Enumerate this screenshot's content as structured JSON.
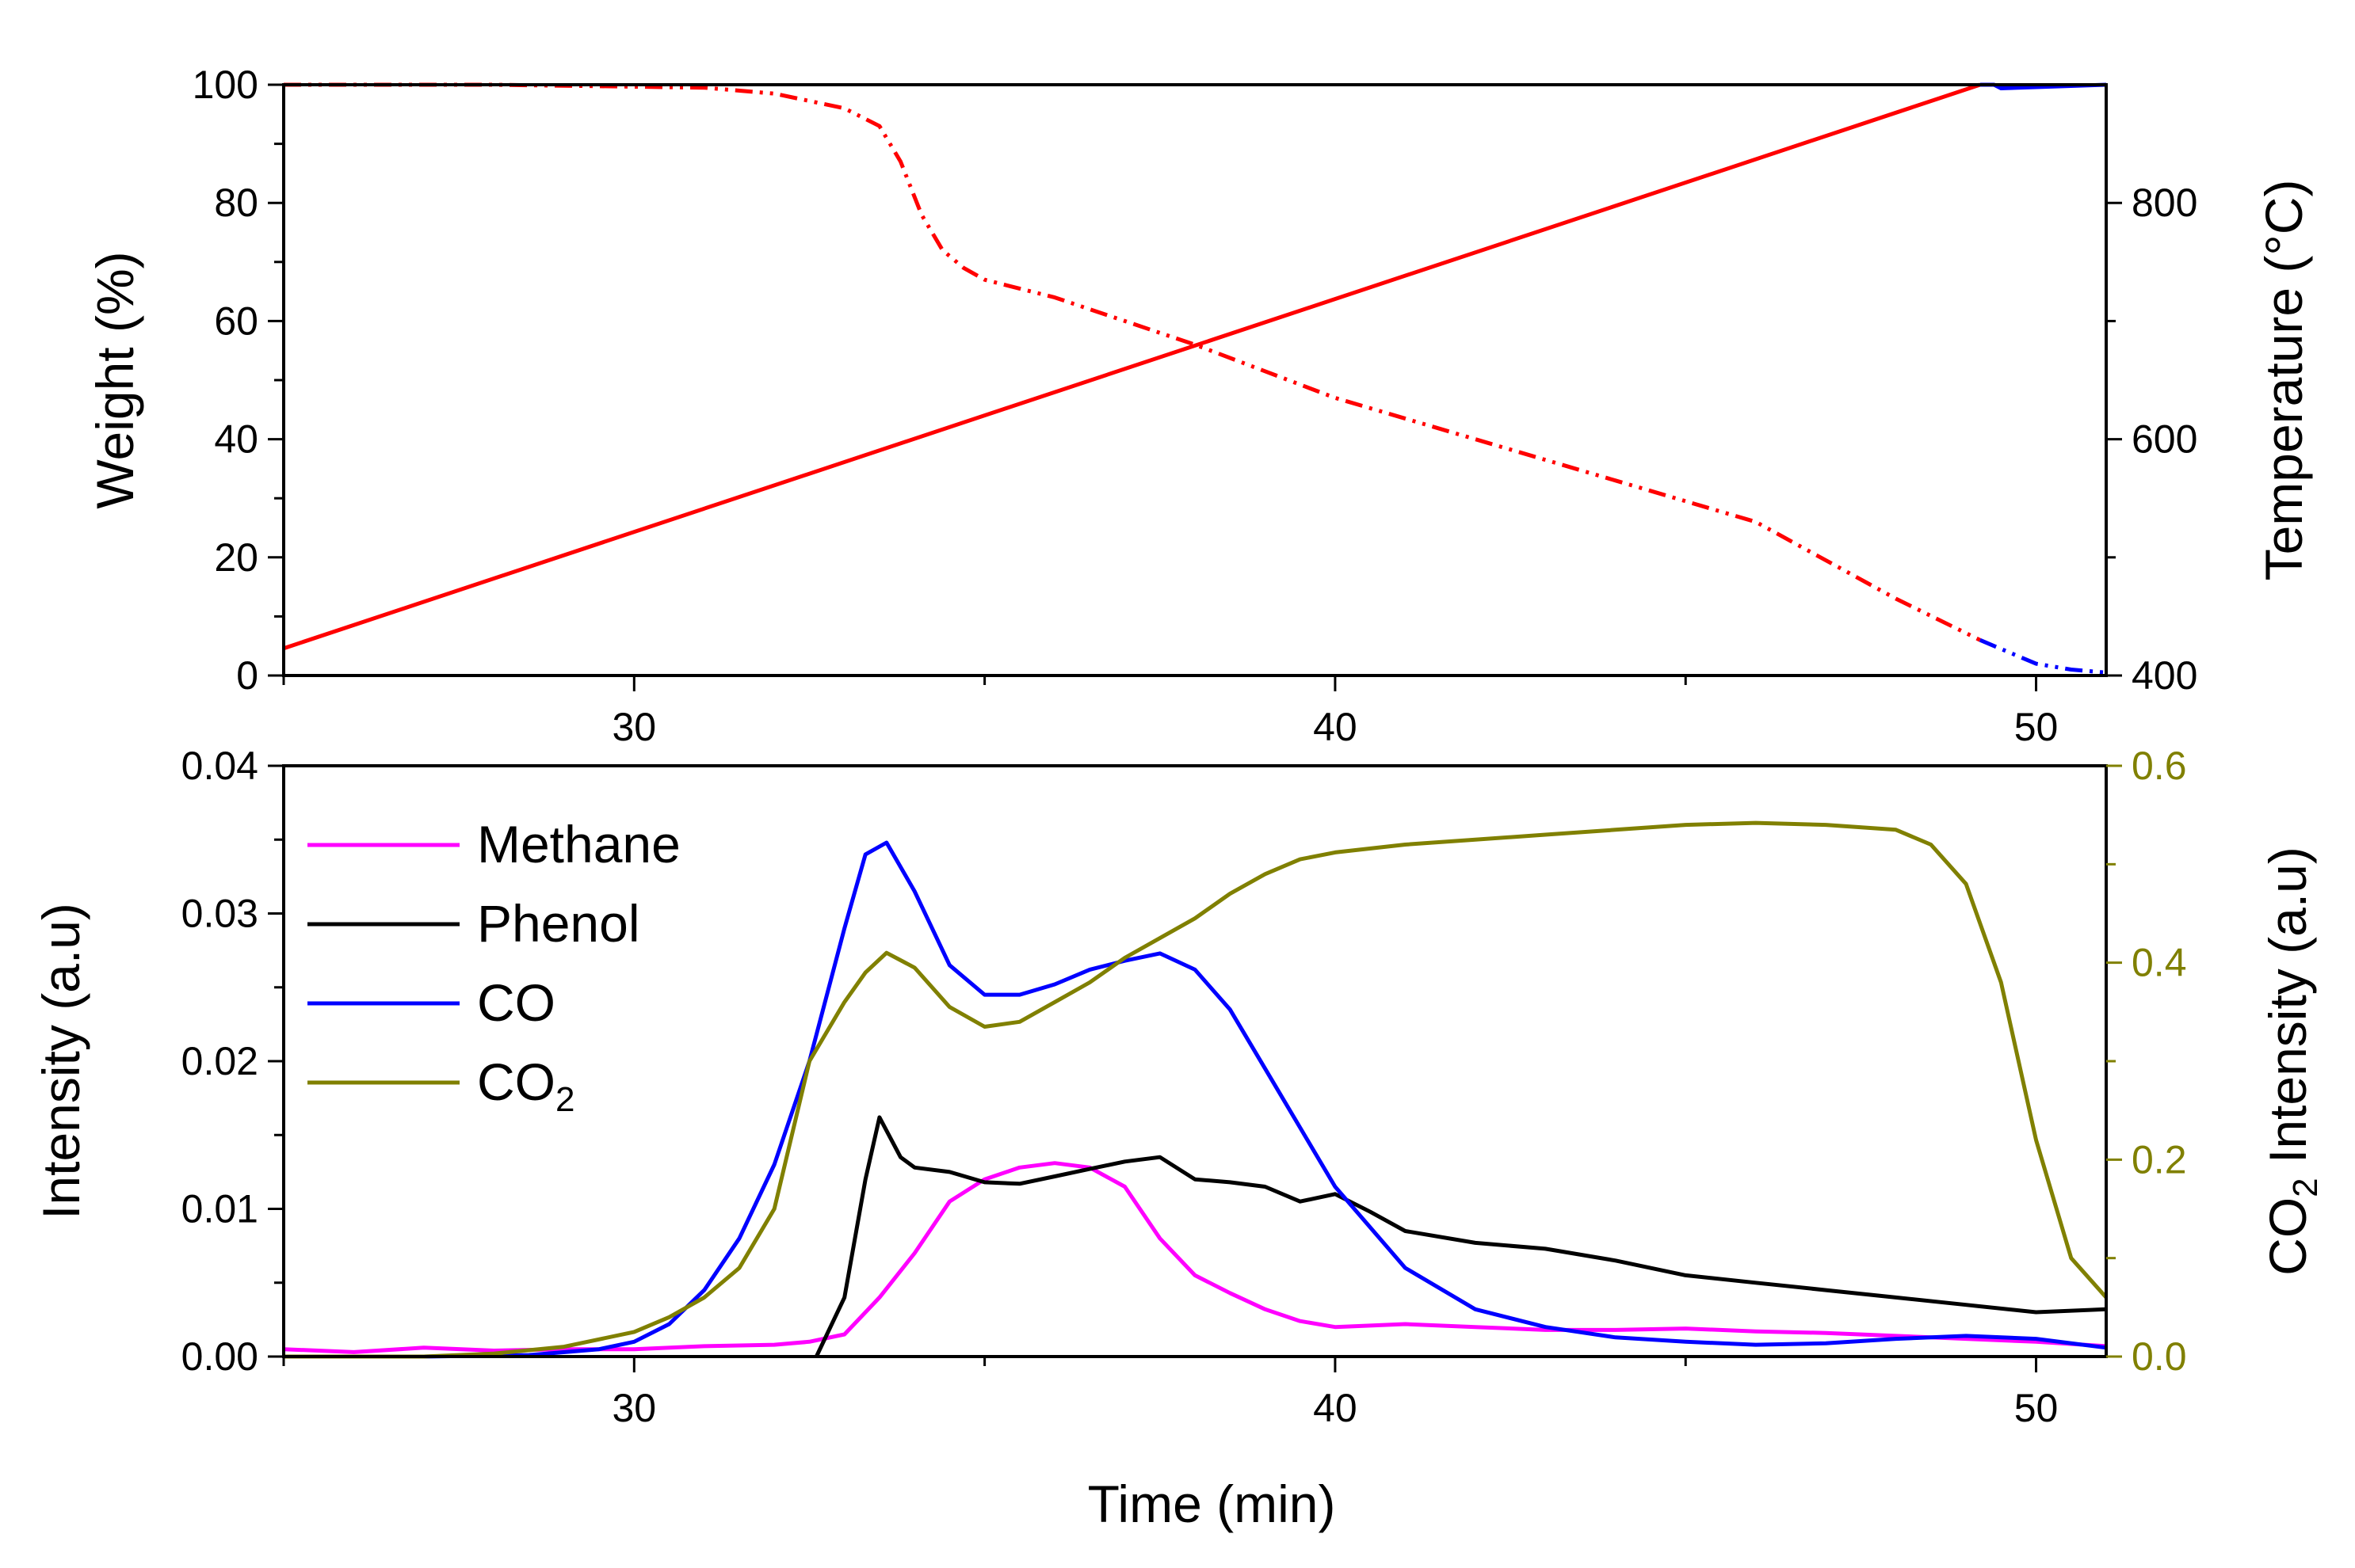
{
  "colors": {
    "weight": "#ff0000",
    "temperature_ramp": "#ff0000",
    "temperature_hold": "#0000ff",
    "methane": "#ff00ff",
    "phenol": "#000000",
    "co": "#0000ff",
    "co2": "#808000",
    "axis": "#000000"
  },
  "chart_data": [
    {
      "id": "top",
      "type": "line",
      "x_label": "",
      "xlim": [
        25,
        51
      ],
      "x_ticks": [
        30,
        40,
        50
      ],
      "y_left": {
        "label": "Weight (%)",
        "lim": [
          0,
          100
        ],
        "ticks": [
          0,
          20,
          40,
          60,
          80,
          100
        ]
      },
      "y_right": {
        "label": "Temperature (°C)",
        "lim": [
          400,
          900
        ],
        "ticks": [
          400,
          600,
          800
        ]
      },
      "series": [
        {
          "name": "Temperature",
          "axis": "right",
          "style": "solid",
          "x": [
            25,
            49.2,
            49.4,
            49.5,
            50,
            51
          ],
          "y": [
            423,
            900,
            900,
            897,
            898,
            900
          ],
          "segments": [
            {
              "from": 0,
              "to": 1,
              "color_key": "temperature_ramp"
            },
            {
              "from": 1,
              "to": 5,
              "color_key": "temperature_hold"
            }
          ]
        },
        {
          "name": "Weight",
          "axis": "left",
          "style": "dash-dot-dot",
          "x": [
            25,
            28,
            31,
            32,
            33,
            33.5,
            33.8,
            34.1,
            34.4,
            34.7,
            35,
            35.5,
            36,
            37,
            38,
            40,
            42,
            44,
            46,
            48,
            49.2,
            49.5,
            50,
            50.5,
            51
          ],
          "y": [
            100,
            100,
            99.5,
            98.5,
            96,
            93,
            87,
            78,
            72,
            69,
            67,
            65.5,
            64,
            60,
            56,
            47,
            40,
            33,
            26,
            13,
            6,
            4.5,
            2,
            1,
            0.5
          ],
          "segments": [
            {
              "from": 0,
              "to": 20,
              "color_key": "weight"
            },
            {
              "from": 20,
              "to": 24,
              "color_key": "temperature_hold"
            }
          ]
        }
      ]
    },
    {
      "id": "bottom",
      "type": "line",
      "x_label": "Time (min)",
      "xlim": [
        25,
        51
      ],
      "x_ticks": [
        30,
        40,
        50
      ],
      "y_left": {
        "label": "Intensity (a.u)",
        "lim": [
          0,
          0.04
        ],
        "ticks": [
          "0.00",
          "0.01",
          "0.02",
          "0.03",
          "0.04"
        ]
      },
      "y_right": {
        "label_main": "CO",
        "label_sub": "2",
        "label_rest": " Intensity (a.u)",
        "lim": [
          0,
          0.6
        ],
        "ticks": [
          "0.0",
          "0.2",
          "0.4",
          "0.6"
        ]
      },
      "legend": {
        "position": "top-left",
        "entries": [
          {
            "label": "Methane",
            "sub": "",
            "color_key": "methane"
          },
          {
            "label": "Phenol",
            "sub": "",
            "color_key": "phenol"
          },
          {
            "label": "CO",
            "sub": "",
            "color_key": "co"
          },
          {
            "label": "CO",
            "sub": "2",
            "color_key": "co2"
          }
        ]
      },
      "series": [
        {
          "name": "Methane",
          "axis": "left",
          "color_key": "methane",
          "x": [
            25,
            26,
            27,
            28,
            29,
            30,
            31,
            32,
            32.5,
            33,
            33.5,
            34,
            34.5,
            35,
            35.5,
            36,
            36.5,
            37,
            37.5,
            38,
            38.5,
            39,
            39.5,
            40,
            41,
            42,
            43,
            44,
            45,
            46,
            47,
            48,
            49,
            50,
            51
          ],
          "y": [
            0.0005,
            0.0003,
            0.0006,
            0.0004,
            0.0005,
            0.0005,
            0.0007,
            0.0008,
            0.001,
            0.0015,
            0.004,
            0.007,
            0.0105,
            0.012,
            0.0128,
            0.0131,
            0.0128,
            0.0115,
            0.008,
            0.0055,
            0.0043,
            0.0032,
            0.0024,
            0.002,
            0.0022,
            0.002,
            0.0018,
            0.0018,
            0.0019,
            0.0017,
            0.0016,
            0.0014,
            0.0012,
            0.001,
            0.0007
          ]
        },
        {
          "name": "Phenol",
          "axis": "left",
          "color_key": "phenol",
          "x": [
            32.6,
            33,
            33.3,
            33.5,
            33.8,
            34,
            34.5,
            35,
            35.5,
            36,
            36.5,
            37,
            37.5,
            38,
            38.5,
            39,
            39.5,
            40,
            40.5,
            41,
            42,
            43,
            44,
            45,
            46,
            47,
            48,
            49,
            50,
            51
          ],
          "y": [
            0,
            0.004,
            0.012,
            0.0162,
            0.0135,
            0.0128,
            0.0125,
            0.0118,
            0.0117,
            0.0122,
            0.0127,
            0.0132,
            0.0135,
            0.012,
            0.0118,
            0.0115,
            0.0105,
            0.011,
            0.0098,
            0.0085,
            0.0077,
            0.0073,
            0.0065,
            0.0055,
            0.005,
            0.0045,
            0.004,
            0.0035,
            0.003,
            0.0032
          ]
        },
        {
          "name": "CO",
          "axis": "left",
          "color_key": "co",
          "x": [
            25,
            27,
            28.5,
            29.5,
            30,
            30.5,
            31,
            31.5,
            32,
            32.5,
            33,
            33.3,
            33.6,
            34,
            34.5,
            35,
            35.5,
            36,
            36.5,
            37,
            37.5,
            38,
            38.5,
            39,
            39.5,
            40,
            41,
            42,
            43,
            44,
            45,
            46,
            47,
            48,
            49,
            50,
            51
          ],
          "y": [
            0,
            0,
            0.0001,
            0.0005,
            0.001,
            0.0022,
            0.0045,
            0.008,
            0.013,
            0.02,
            0.029,
            0.034,
            0.0348,
            0.0315,
            0.0265,
            0.0245,
            0.0245,
            0.0252,
            0.0262,
            0.0268,
            0.0273,
            0.0262,
            0.0235,
            0.0195,
            0.0155,
            0.0115,
            0.006,
            0.0032,
            0.002,
            0.0013,
            0.001,
            0.0008,
            0.0009,
            0.0012,
            0.0014,
            0.0012,
            0.0006
          ]
        },
        {
          "name": "CO2",
          "axis": "right",
          "color_key": "co2",
          "x": [
            25,
            27,
            28,
            29,
            30,
            30.5,
            31,
            31.5,
            32,
            32.5,
            33,
            33.3,
            33.6,
            34,
            34.5,
            35,
            35.5,
            36,
            36.5,
            37,
            37.5,
            38,
            38.5,
            39,
            39.5,
            40,
            41,
            42,
            43,
            44,
            45,
            46,
            47,
            48,
            48.5,
            49,
            49.5,
            50,
            50.5,
            51
          ],
          "y": [
            0,
            0,
            0.003,
            0.01,
            0.025,
            0.04,
            0.06,
            0.09,
            0.15,
            0.3,
            0.36,
            0.39,
            0.41,
            0.395,
            0.355,
            0.335,
            0.34,
            0.36,
            0.38,
            0.405,
            0.425,
            0.445,
            0.47,
            0.49,
            0.505,
            0.512,
            0.52,
            0.525,
            0.53,
            0.535,
            0.54,
            0.542,
            0.54,
            0.535,
            0.52,
            0.48,
            0.38,
            0.22,
            0.1,
            0.06
          ]
        }
      ]
    }
  ]
}
